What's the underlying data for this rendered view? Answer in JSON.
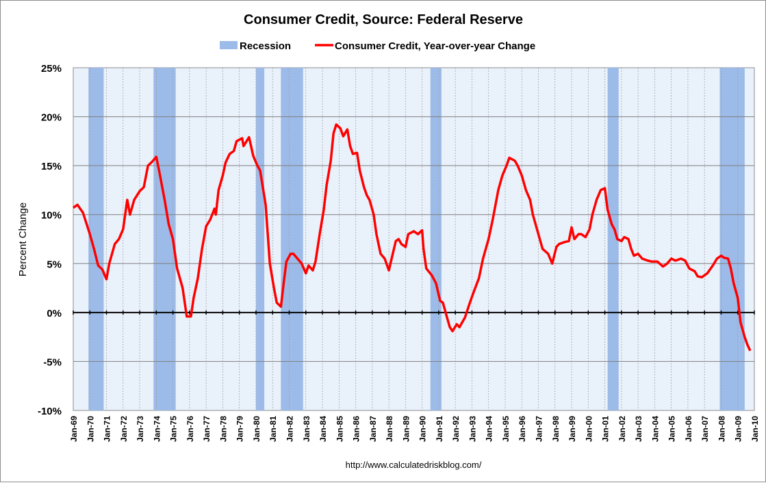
{
  "chart_data": {
    "type": "line",
    "title": "Consumer Credit, Source: Federal Reserve",
    "ylabel": "Percent Change",
    "xlabel": "",
    "source_note": "http://www.calculatedriskblog.com/",
    "ylim": [
      -10,
      25
    ],
    "yticks": [
      {
        "value": 25,
        "label": "25%"
      },
      {
        "value": 20,
        "label": "20%"
      },
      {
        "value": 15,
        "label": "15%"
      },
      {
        "value": 10,
        "label": "10%"
      },
      {
        "value": 5,
        "label": "5%"
      },
      {
        "value": 0,
        "label": "0%"
      },
      {
        "value": -5,
        "label": "-5%"
      },
      {
        "value": -10,
        "label": "-10%"
      }
    ],
    "xlim": [
      "1969-01",
      "2010-01"
    ],
    "xticks": [
      "Jan-69",
      "Jan-70",
      "Jan-71",
      "Jan-72",
      "Jan-73",
      "Jan-74",
      "Jan-75",
      "Jan-76",
      "Jan-77",
      "Jan-78",
      "Jan-79",
      "Jan-80",
      "Jan-81",
      "Jan-82",
      "Jan-83",
      "Jan-84",
      "Jan-85",
      "Jan-86",
      "Jan-87",
      "Jan-88",
      "Jan-89",
      "Jan-90",
      "Jan-91",
      "Jan-92",
      "Jan-93",
      "Jan-94",
      "Jan-95",
      "Jan-96",
      "Jan-97",
      "Jan-98",
      "Jan-99",
      "Jan-00",
      "Jan-01",
      "Jan-02",
      "Jan-03",
      "Jan-04",
      "Jan-05",
      "Jan-06",
      "Jan-07",
      "Jan-08",
      "Jan-09",
      "Jan-10"
    ],
    "grid": {
      "horizontal": true,
      "vertical_dashed": true
    },
    "legend": {
      "placement": "top",
      "entries": [
        {
          "name": "Recession",
          "kind": "band",
          "color": "#9dbbe8"
        },
        {
          "name": "Consumer Credit, Year-over-year Change",
          "kind": "line",
          "color": "#ff0000"
        }
      ]
    },
    "colors": {
      "plot_background": "#e9f1fb",
      "recession": "#9dbbe8",
      "line": "#ff0000",
      "grid": "#808080"
    },
    "recessions": [
      [
        "1969-12",
        "1970-11"
      ],
      [
        "1973-11",
        "1975-03"
      ],
      [
        "1980-01",
        "1980-07"
      ],
      [
        "1981-07",
        "1982-11"
      ],
      [
        "1990-07",
        "1991-03"
      ],
      [
        "2001-03",
        "2001-11"
      ],
      [
        "2007-12",
        "2009-06"
      ]
    ],
    "series": [
      {
        "name": "Consumer Credit, Year-over-year Change",
        "points": [
          [
            "1969-01",
            10.7
          ],
          [
            "1969-04",
            11.0
          ],
          [
            "1969-08",
            10.2
          ],
          [
            "1970-01",
            8.0
          ],
          [
            "1970-04",
            6.5
          ],
          [
            "1970-07",
            4.8
          ],
          [
            "1970-10",
            4.4
          ],
          [
            "1971-01",
            3.4
          ],
          [
            "1971-03",
            5.0
          ],
          [
            "1971-07",
            7.0
          ],
          [
            "1971-10",
            7.5
          ],
          [
            "1972-01",
            8.5
          ],
          [
            "1972-04",
            11.5
          ],
          [
            "1972-06",
            10.0
          ],
          [
            "1972-09",
            11.5
          ],
          [
            "1973-01",
            12.4
          ],
          [
            "1973-04",
            12.8
          ],
          [
            "1973-07",
            15.0
          ],
          [
            "1973-10",
            15.4
          ],
          [
            "1974-01",
            15.9
          ],
          [
            "1974-03",
            14.5
          ],
          [
            "1974-07",
            11.5
          ],
          [
            "1974-10",
            9.0
          ],
          [
            "1975-01",
            7.5
          ],
          [
            "1975-04",
            4.5
          ],
          [
            "1975-08",
            2.5
          ],
          [
            "1975-11",
            -0.4
          ],
          [
            "1976-02",
            -0.4
          ],
          [
            "1976-04",
            1.5
          ],
          [
            "1976-07",
            3.5
          ],
          [
            "1976-10",
            6.5
          ],
          [
            "1977-01",
            8.8
          ],
          [
            "1977-04",
            9.5
          ],
          [
            "1977-07",
            10.6
          ],
          [
            "1977-08",
            10.0
          ],
          [
            "1977-10",
            12.5
          ],
          [
            "1978-01",
            14.0
          ],
          [
            "1978-03",
            15.3
          ],
          [
            "1978-06",
            16.2
          ],
          [
            "1978-09",
            16.5
          ],
          [
            "1978-11",
            17.5
          ],
          [
            "1979-03",
            17.8
          ],
          [
            "1979-04",
            17.0
          ],
          [
            "1979-08",
            17.9
          ],
          [
            "1979-11",
            16.0
          ],
          [
            "1980-02",
            15.0
          ],
          [
            "1980-04",
            14.5
          ],
          [
            "1980-08",
            11.0
          ],
          [
            "1980-11",
            5.0
          ],
          [
            "1981-02",
            2.5
          ],
          [
            "1981-04",
            1.0
          ],
          [
            "1981-07",
            0.6
          ],
          [
            "1981-09",
            3.0
          ],
          [
            "1981-11",
            5.2
          ],
          [
            "1982-02",
            6.0
          ],
          [
            "1982-04",
            6.0
          ],
          [
            "1982-07",
            5.5
          ],
          [
            "1982-10",
            5.0
          ],
          [
            "1983-01",
            4.0
          ],
          [
            "1983-03",
            4.8
          ],
          [
            "1983-06",
            4.3
          ],
          [
            "1983-08",
            5.2
          ],
          [
            "1983-11",
            8.0
          ],
          [
            "1984-02",
            10.5
          ],
          [
            "1984-04",
            13.0
          ],
          [
            "1984-07",
            15.5
          ],
          [
            "1984-09",
            18.3
          ],
          [
            "1984-11",
            19.2
          ],
          [
            "1985-02",
            18.8
          ],
          [
            "1985-04",
            18.0
          ],
          [
            "1985-07",
            18.7
          ],
          [
            "1985-09",
            17.0
          ],
          [
            "1985-11",
            16.2
          ],
          [
            "1986-02",
            16.3
          ],
          [
            "1986-04",
            14.5
          ],
          [
            "1986-07",
            12.8
          ],
          [
            "1986-09",
            12.0
          ],
          [
            "1986-11",
            11.5
          ],
          [
            "1987-02",
            10.0
          ],
          [
            "1987-04",
            8.0
          ],
          [
            "1987-07",
            6.0
          ],
          [
            "1987-10",
            5.5
          ],
          [
            "1988-01",
            4.3
          ],
          [
            "1988-03",
            5.5
          ],
          [
            "1988-06",
            7.3
          ],
          [
            "1988-08",
            7.5
          ],
          [
            "1988-10",
            7.0
          ],
          [
            "1989-01",
            6.7
          ],
          [
            "1989-03",
            8.0
          ],
          [
            "1989-07",
            8.3
          ],
          [
            "1989-10",
            8.0
          ],
          [
            "1990-01",
            8.4
          ],
          [
            "1990-02",
            6.5
          ],
          [
            "1990-04",
            4.5
          ],
          [
            "1990-08",
            3.8
          ],
          [
            "1990-11",
            3.0
          ],
          [
            "1991-02",
            1.2
          ],
          [
            "1991-04",
            1.0
          ],
          [
            "1991-07",
            -0.5
          ],
          [
            "1991-09",
            -1.5
          ],
          [
            "1991-11",
            -1.9
          ],
          [
            "1992-02",
            -1.2
          ],
          [
            "1992-04",
            -1.5
          ],
          [
            "1992-08",
            -0.5
          ],
          [
            "1992-11",
            0.8
          ],
          [
            "1993-02",
            2.0
          ],
          [
            "1993-06",
            3.5
          ],
          [
            "1993-09",
            5.5
          ],
          [
            "1994-01",
            7.5
          ],
          [
            "1994-04",
            9.5
          ],
          [
            "1994-08",
            12.5
          ],
          [
            "1994-11",
            14.0
          ],
          [
            "1995-02",
            15.0
          ],
          [
            "1995-04",
            15.8
          ],
          [
            "1995-08",
            15.5
          ],
          [
            "1995-10",
            15.0
          ],
          [
            "1996-01",
            14.0
          ],
          [
            "1996-04",
            12.5
          ],
          [
            "1996-07",
            11.5
          ],
          [
            "1996-09",
            10.0
          ],
          [
            "1997-01",
            8.0
          ],
          [
            "1997-04",
            6.5
          ],
          [
            "1997-08",
            6.0
          ],
          [
            "1997-11",
            5.0
          ],
          [
            "1998-02",
            6.7
          ],
          [
            "1998-04",
            7.0
          ],
          [
            "1998-08",
            7.2
          ],
          [
            "1998-11",
            7.3
          ],
          [
            "1999-01",
            8.7
          ],
          [
            "1999-03",
            7.5
          ],
          [
            "1999-06",
            8.0
          ],
          [
            "1999-08",
            8.0
          ],
          [
            "1999-11",
            7.7
          ],
          [
            "2000-02",
            8.5
          ],
          [
            "2000-04",
            10.0
          ],
          [
            "2000-07",
            11.5
          ],
          [
            "2000-10",
            12.5
          ],
          [
            "2001-01",
            12.7
          ],
          [
            "2001-03",
            10.5
          ],
          [
            "2001-06",
            9.0
          ],
          [
            "2001-08",
            8.5
          ],
          [
            "2001-10",
            7.5
          ],
          [
            "2002-01",
            7.3
          ],
          [
            "2002-03",
            7.7
          ],
          [
            "2002-06",
            7.5
          ],
          [
            "2002-08",
            6.5
          ],
          [
            "2002-10",
            5.8
          ],
          [
            "2003-01",
            6.0
          ],
          [
            "2003-04",
            5.5
          ],
          [
            "2003-08",
            5.3
          ],
          [
            "2003-11",
            5.2
          ],
          [
            "2004-03",
            5.2
          ],
          [
            "2004-07",
            4.7
          ],
          [
            "2004-10",
            5.0
          ],
          [
            "2005-01",
            5.5
          ],
          [
            "2005-04",
            5.3
          ],
          [
            "2005-08",
            5.5
          ],
          [
            "2005-11",
            5.3
          ],
          [
            "2006-02",
            4.5
          ],
          [
            "2006-06",
            4.2
          ],
          [
            "2006-08",
            3.7
          ],
          [
            "2006-11",
            3.6
          ],
          [
            "2007-03",
            4.0
          ],
          [
            "2007-07",
            4.8
          ],
          [
            "2007-10",
            5.5
          ],
          [
            "2008-01",
            5.8
          ],
          [
            "2008-03",
            5.6
          ],
          [
            "2008-06",
            5.5
          ],
          [
            "2008-08",
            4.5
          ],
          [
            "2008-10",
            3.0
          ],
          [
            "2009-01",
            1.5
          ],
          [
            "2009-03",
            -1.0
          ],
          [
            "2009-06",
            -2.5
          ],
          [
            "2009-08",
            -3.3
          ],
          [
            "2009-10",
            -3.9
          ]
        ]
      }
    ]
  }
}
